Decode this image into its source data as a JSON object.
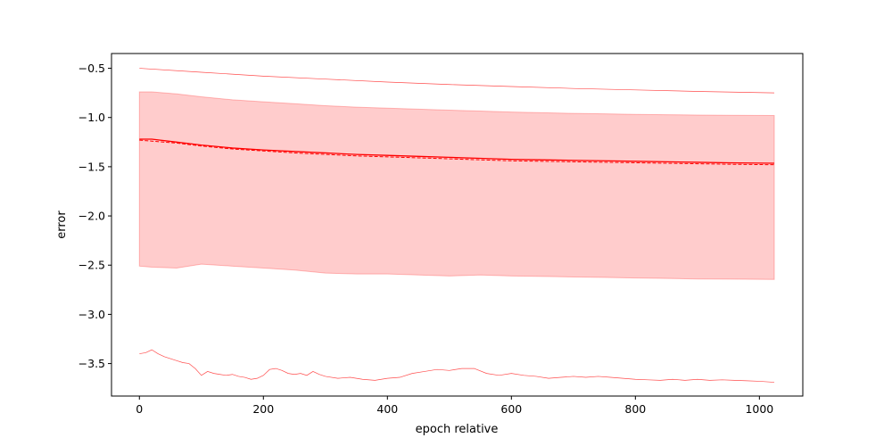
{
  "chart_data": {
    "type": "line",
    "title": "",
    "xlabel": "epoch relative",
    "ylabel": "error",
    "xlim": [
      -45,
      1070
    ],
    "ylim": [
      -3.83,
      -0.35
    ],
    "xticks": [
      0,
      200,
      400,
      600,
      800,
      1000
    ],
    "xtick_labels": [
      "0",
      "200",
      "400",
      "600",
      "800",
      "1000"
    ],
    "yticks": [
      -3.5,
      -3.0,
      -2.5,
      -2.0,
      -1.5,
      -1.0,
      -0.5
    ],
    "ytick_labels": [
      "−3.5",
      "−3.0",
      "−2.5",
      "−2.0",
      "−1.5",
      "−1.0",
      "−0.5"
    ],
    "grid": false,
    "color": "#ff0000",
    "band": {
      "x": [
        0,
        20,
        60,
        100,
        150,
        200,
        250,
        300,
        350,
        400,
        450,
        500,
        550,
        600,
        650,
        700,
        750,
        800,
        850,
        900,
        950,
        1024
      ],
      "upper": [
        -0.74,
        -0.74,
        -0.76,
        -0.79,
        -0.82,
        -0.84,
        -0.86,
        -0.88,
        -0.895,
        -0.905,
        -0.915,
        -0.925,
        -0.935,
        -0.945,
        -0.952,
        -0.958,
        -0.963,
        -0.968,
        -0.972,
        -0.975,
        -0.978,
        -0.98
      ],
      "lower": [
        -2.51,
        -2.52,
        -2.53,
        -2.49,
        -2.51,
        -2.53,
        -2.55,
        -2.58,
        -2.59,
        -2.59,
        -2.6,
        -2.61,
        -2.6,
        -2.61,
        -2.615,
        -2.62,
        -2.625,
        -2.63,
        -2.635,
        -2.64,
        -2.642,
        -2.645
      ]
    },
    "series": [
      {
        "name": "",
        "style": "solid",
        "x": [
          0,
          20,
          60,
          100,
          150,
          200,
          250,
          300,
          350,
          400,
          450,
          500,
          550,
          600,
          650,
          700,
          750,
          800,
          850,
          900,
          950,
          1024
        ],
        "values": [
          -1.22,
          -1.22,
          -1.25,
          -1.28,
          -1.31,
          -1.33,
          -1.345,
          -1.36,
          -1.375,
          -1.385,
          -1.395,
          -1.405,
          -1.415,
          -1.425,
          -1.43,
          -1.435,
          -1.44,
          -1.445,
          -1.45,
          -1.455,
          -1.46,
          -1.465
        ]
      },
      {
        "name": "",
        "style": "dashed",
        "x": [
          0,
          20,
          60,
          100,
          150,
          200,
          250,
          300,
          350,
          400,
          450,
          500,
          550,
          600,
          650,
          700,
          750,
          800,
          850,
          900,
          950,
          1024
        ],
        "values": [
          -1.23,
          -1.24,
          -1.26,
          -1.29,
          -1.32,
          -1.34,
          -1.36,
          -1.375,
          -1.39,
          -1.4,
          -1.41,
          -1.42,
          -1.43,
          -1.44,
          -1.445,
          -1.45,
          -1.455,
          -1.46,
          -1.465,
          -1.47,
          -1.475,
          -1.48
        ]
      },
      {
        "name": "",
        "style": "thin",
        "x": [
          0,
          100,
          200,
          300,
          400,
          500,
          600,
          700,
          800,
          900,
          1024
        ],
        "values": [
          -0.5,
          -0.54,
          -0.58,
          -0.61,
          -0.64,
          -0.665,
          -0.685,
          -0.705,
          -0.72,
          -0.735,
          -0.75
        ]
      },
      {
        "name": "",
        "style": "thin",
        "x": [
          0,
          10,
          20,
          30,
          40,
          50,
          60,
          70,
          80,
          90,
          100,
          110,
          120,
          130,
          140,
          150,
          160,
          170,
          180,
          190,
          200,
          210,
          220,
          230,
          240,
          250,
          260,
          270,
          280,
          290,
          300,
          320,
          340,
          360,
          380,
          400,
          420,
          440,
          460,
          480,
          500,
          520,
          540,
          560,
          580,
          600,
          620,
          640,
          660,
          680,
          700,
          720,
          740,
          760,
          780,
          800,
          820,
          840,
          860,
          880,
          900,
          920,
          940,
          960,
          980,
          1000,
          1024
        ],
        "values": [
          -3.4,
          -3.39,
          -3.36,
          -3.4,
          -3.43,
          -3.45,
          -3.47,
          -3.49,
          -3.5,
          -3.55,
          -3.62,
          -3.58,
          -3.6,
          -3.61,
          -3.62,
          -3.61,
          -3.63,
          -3.64,
          -3.66,
          -3.65,
          -3.62,
          -3.56,
          -3.55,
          -3.57,
          -3.6,
          -3.61,
          -3.6,
          -3.62,
          -3.58,
          -3.61,
          -3.63,
          -3.65,
          -3.64,
          -3.66,
          -3.67,
          -3.65,
          -3.64,
          -3.6,
          -3.58,
          -3.56,
          -3.57,
          -3.55,
          -3.55,
          -3.6,
          -3.62,
          -3.6,
          -3.62,
          -3.63,
          -3.65,
          -3.64,
          -3.63,
          -3.64,
          -3.63,
          -3.64,
          -3.65,
          -3.66,
          -3.665,
          -3.67,
          -3.66,
          -3.67,
          -3.66,
          -3.67,
          -3.665,
          -3.67,
          -3.675,
          -3.68,
          -3.69
        ]
      }
    ]
  }
}
